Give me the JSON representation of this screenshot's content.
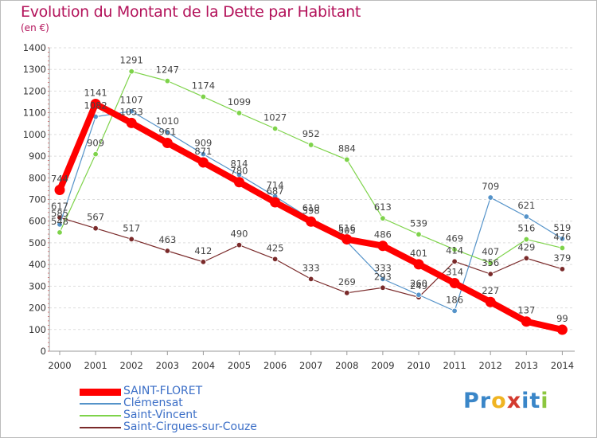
{
  "title": "Evolution du Montant de la Dette par Habitant",
  "unit": "(en €)",
  "logo": {
    "letters": [
      {
        "ch": "P",
        "color": "#3a86c8"
      },
      {
        "ch": "r",
        "color": "#3a86c8"
      },
      {
        "ch": "o",
        "color": "#f0b422"
      },
      {
        "ch": "x",
        "color": "#d33a2f"
      },
      {
        "ch": "i",
        "color": "#3a86c8"
      },
      {
        "ch": "t",
        "color": "#3a86c8"
      },
      {
        "ch": "i",
        "color": "#8cc63f"
      }
    ]
  },
  "chart_data": {
    "type": "line",
    "title": "Evolution du Montant de la Dette par Habitant",
    "ylabel": "(en €)",
    "xlabel": "",
    "x": [
      "2000",
      "2001",
      "2002",
      "2003",
      "2004",
      "2005",
      "2006",
      "2007",
      "2008",
      "2009",
      "2010",
      "2011",
      "2012",
      "2013",
      "2014"
    ],
    "ylim": [
      0,
      1400
    ],
    "yticks": [
      "0",
      "100",
      "200",
      "300",
      "400",
      "500",
      "600",
      "700",
      "800",
      "900",
      "1000",
      "1100",
      "1200",
      "1300",
      "1400"
    ],
    "grid": "horizontal dashed",
    "legend": "bottom-left",
    "series": [
      {
        "name": "SAINT-FLORET",
        "color": "#ff0000",
        "values": [
          744,
          1141,
          1053,
          961,
          871,
          780,
          687,
          598,
          516,
          486,
          401,
          314,
          227,
          137,
          99
        ]
      },
      {
        "name": "Clémensat",
        "color": "#5593c9",
        "values": [
          585,
          1082,
          1107,
          1010,
          909,
          814,
          714,
          610,
          505,
          333,
          260,
          186,
          709,
          621,
          519
        ]
      },
      {
        "name": "Saint-Vincent",
        "color": "#7ed34a",
        "values": [
          548,
          909,
          1291,
          1247,
          1174,
          1099,
          1027,
          952,
          884,
          613,
          539,
          469,
          407,
          516,
          476
        ]
      },
      {
        "name": "Saint-Cirgues-sur-Couze",
        "color": "#7a2a2a",
        "values": [
          617,
          567,
          517,
          463,
          412,
          490,
          425,
          333,
          269,
          293,
          249,
          414,
          356,
          429,
          379
        ]
      }
    ]
  }
}
